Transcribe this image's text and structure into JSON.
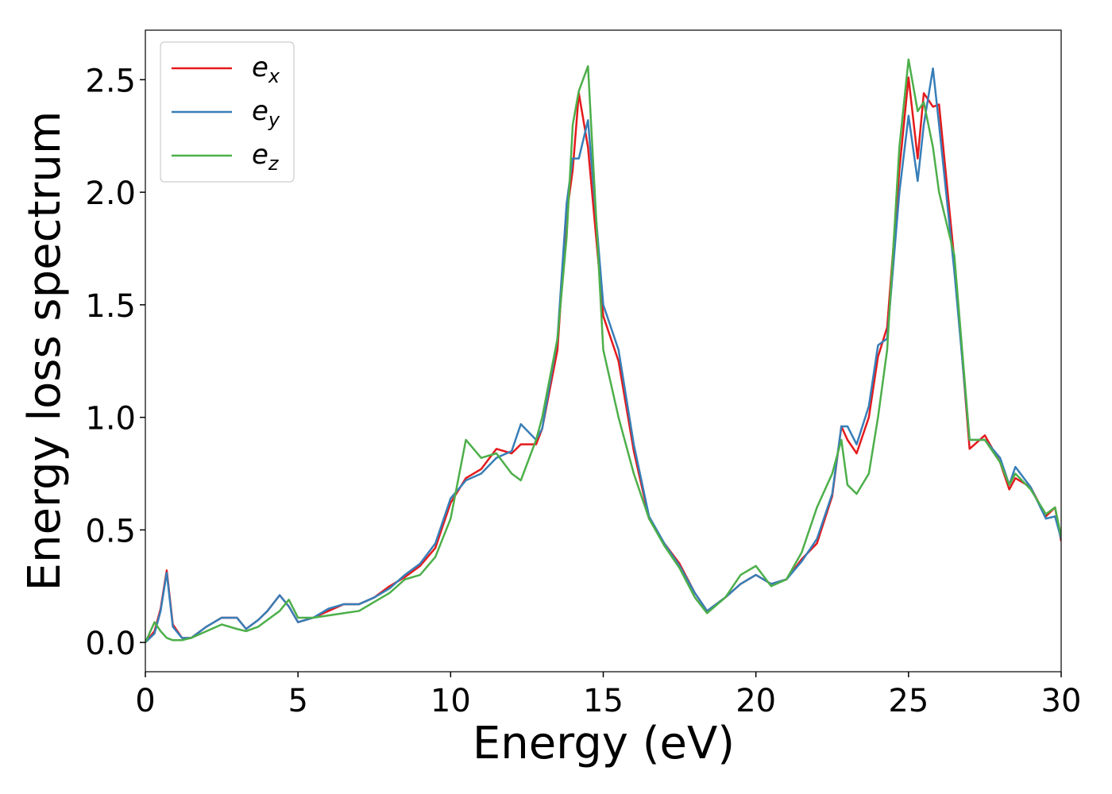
{
  "chart_data": {
    "type": "line",
    "x_label": "Energy (eV)",
    "y_label": "Energy loss spectrum",
    "x": [
      0,
      0.3,
      0.5,
      0.7,
      0.9,
      1.2,
      1.5,
      2,
      2.5,
      3,
      3.3,
      3.7,
      4,
      4.4,
      4.7,
      5,
      5.5,
      6,
      6.5,
      7,
      7.5,
      8,
      8.5,
      9,
      9.5,
      10,
      10.5,
      11,
      11.5,
      12,
      12.3,
      12.8,
      13,
      13.5,
      13.8,
      14,
      14.2,
      14.5,
      15,
      15.5,
      16,
      16.5,
      17,
      17.5,
      18,
      18.4,
      19,
      19.5,
      20,
      20.5,
      21,
      21.5,
      22,
      22.5,
      22.8,
      23,
      23.3,
      23.7,
      24,
      24.3,
      24.7,
      25,
      25.3,
      25.5,
      25.8,
      26,
      26.5,
      27,
      27.5,
      28,
      28.3,
      28.5,
      29,
      29.5,
      29.8,
      30
    ],
    "series": [
      {
        "name": "ex",
        "color": "#e41a1c",
        "values": [
          0,
          0.05,
          0.15,
          0.32,
          0.08,
          0.02,
          0.02,
          0.07,
          0.11,
          0.11,
          0.06,
          0.1,
          0.14,
          0.21,
          0.16,
          0.09,
          0.11,
          0.14,
          0.17,
          0.17,
          0.2,
          0.25,
          0.29,
          0.34,
          0.42,
          0.62,
          0.73,
          0.77,
          0.86,
          0.84,
          0.88,
          0.88,
          0.95,
          1.3,
          1.9,
          2.1,
          2.44,
          2.2,
          1.45,
          1.25,
          0.85,
          0.55,
          0.44,
          0.35,
          0.22,
          0.14,
          0.2,
          0.26,
          0.3,
          0.26,
          0.28,
          0.37,
          0.44,
          0.65,
          0.96,
          0.9,
          0.84,
          1.0,
          1.27,
          1.4,
          2.1,
          2.51,
          2.15,
          2.44,
          2.38,
          2.39,
          1.7,
          0.86,
          0.92,
          0.8,
          0.68,
          0.73,
          0.69,
          0.56,
          0.6,
          0.45
        ]
      },
      {
        "name": "ey",
        "color": "#377eb8",
        "values": [
          0,
          0.04,
          0.14,
          0.31,
          0.07,
          0.02,
          0.02,
          0.07,
          0.11,
          0.11,
          0.06,
          0.1,
          0.14,
          0.21,
          0.16,
          0.09,
          0.11,
          0.15,
          0.17,
          0.17,
          0.2,
          0.24,
          0.3,
          0.35,
          0.44,
          0.64,
          0.72,
          0.75,
          0.82,
          0.85,
          0.97,
          0.9,
          0.95,
          1.35,
          1.95,
          2.15,
          2.15,
          2.32,
          1.5,
          1.3,
          0.88,
          0.56,
          0.44,
          0.34,
          0.22,
          0.14,
          0.2,
          0.26,
          0.3,
          0.26,
          0.28,
          0.36,
          0.46,
          0.66,
          0.96,
          0.96,
          0.88,
          1.05,
          1.32,
          1.35,
          2.0,
          2.34,
          2.05,
          2.3,
          2.55,
          2.3,
          1.65,
          0.9,
          0.9,
          0.82,
          0.7,
          0.78,
          0.69,
          0.55,
          0.56,
          0.46
        ]
      },
      {
        "name": "ez",
        "color": "#4daf4a",
        "values": [
          0,
          0.09,
          0.05,
          0.02,
          0.01,
          0.01,
          0.02,
          0.05,
          0.08,
          0.06,
          0.05,
          0.07,
          0.1,
          0.14,
          0.19,
          0.11,
          0.11,
          0.12,
          0.13,
          0.14,
          0.18,
          0.22,
          0.28,
          0.3,
          0.38,
          0.55,
          0.9,
          0.82,
          0.84,
          0.75,
          0.72,
          0.9,
          1.0,
          1.35,
          1.8,
          2.3,
          2.45,
          2.56,
          1.3,
          1.0,
          0.75,
          0.55,
          0.43,
          0.33,
          0.2,
          0.13,
          0.2,
          0.3,
          0.34,
          0.25,
          0.28,
          0.4,
          0.6,
          0.75,
          0.9,
          0.7,
          0.66,
          0.75,
          1.0,
          1.3,
          2.2,
          2.59,
          2.36,
          2.4,
          2.2,
          2.0,
          1.72,
          0.9,
          0.9,
          0.8,
          0.7,
          0.75,
          0.68,
          0.57,
          0.6,
          0.47
        ]
      }
    ],
    "xlim": [
      0,
      30
    ],
    "xticks": [
      0,
      5,
      10,
      15,
      20,
      25,
      30
    ],
    "ylim": [
      -0.13,
      2.72
    ],
    "yticks": [
      {
        "value": 0,
        "label": "0.0"
      },
      0.5,
      {
        "value": 1,
        "label": "1.0"
      },
      1.5,
      {
        "value": 2,
        "label": "2.0"
      },
      2.5
    ],
    "legend": "upper left"
  }
}
